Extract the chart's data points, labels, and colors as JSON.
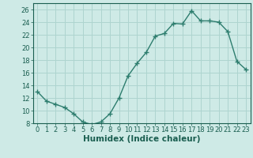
{
  "x": [
    0,
    1,
    2,
    3,
    4,
    5,
    6,
    7,
    8,
    9,
    10,
    11,
    12,
    13,
    14,
    15,
    16,
    17,
    18,
    19,
    20,
    21,
    22,
    23
  ],
  "y": [
    13.0,
    11.5,
    11.0,
    10.5,
    9.5,
    8.2,
    7.8,
    8.2,
    9.5,
    12.0,
    15.5,
    17.5,
    19.2,
    21.8,
    22.2,
    23.8,
    23.7,
    25.8,
    24.2,
    24.2,
    24.0,
    22.5,
    17.8,
    16.5
  ],
  "line_color": "#2d7d6e",
  "marker": "+",
  "marker_size": 4,
  "marker_linewidth": 1.0,
  "line_width": 1.0,
  "bg_color": "#ceeae6",
  "grid_color": "#aed4cf",
  "xlabel": "Humidex (Indice chaleur)",
  "ylim": [
    8,
    27
  ],
  "xlim": [
    -0.5,
    23.5
  ],
  "yticks": [
    8,
    10,
    12,
    14,
    16,
    18,
    20,
    22,
    24,
    26
  ],
  "xticks": [
    0,
    1,
    2,
    3,
    4,
    5,
    6,
    7,
    8,
    9,
    10,
    11,
    12,
    13,
    14,
    15,
    16,
    17,
    18,
    19,
    20,
    21,
    22,
    23
  ],
  "font_color": "#1a5e50",
  "tick_fontsize": 6,
  "label_fontsize": 7.5
}
